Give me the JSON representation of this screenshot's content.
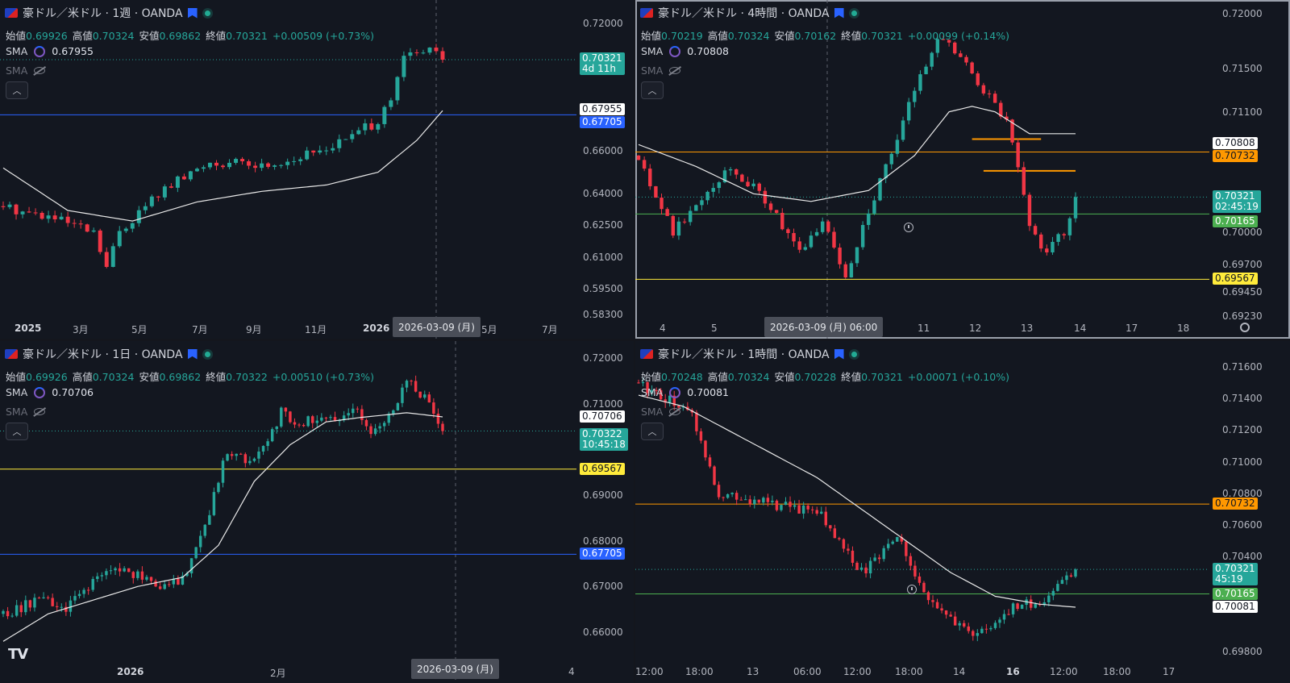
{
  "colors": {
    "up": "#26a69a",
    "down": "#f23645",
    "bg": "#131720",
    "sma": "#e8e8e8",
    "blue": "#2962ff",
    "orange": "#ff9800",
    "yellow": "#ffeb3b",
    "green": "#4caf50"
  },
  "panes": [
    {
      "id": "tl",
      "active": false,
      "title": "豪ドル／米ドル · 1週 · OANDA",
      "ohlc": {
        "open_label": "始値",
        "open": "0.69926",
        "high_label": "高値",
        "high": "0.70324",
        "low_label": "安値",
        "low": "0.69862",
        "close_label": "終値",
        "close": "0.70321",
        "change": "+0.00509 (+0.73%)"
      },
      "sma1": {
        "label": "SMA",
        "value": "0.67955"
      },
      "sma2": {
        "label": "SMA"
      },
      "y_ticks": [
        "0.72000",
        "0.66000",
        "0.64000",
        "0.62500",
        "0.61000",
        "0.59500",
        "0.58300"
      ],
      "x_ticks": [
        {
          "t": "2025",
          "bold": true
        },
        {
          "t": "3月"
        },
        {
          "t": "5月"
        },
        {
          "t": "7月"
        },
        {
          "t": "9月"
        },
        {
          "t": "11月"
        },
        {
          "t": "2026",
          "bold": true
        },
        {
          "t": "5月"
        },
        {
          "t": "7月"
        }
      ],
      "date_pill": "2026-03-09 (月)",
      "tags": [
        {
          "text": "0.70321",
          "sub": "4d 11h",
          "type": "price"
        },
        {
          "text": "0.67955",
          "type": "sma"
        },
        {
          "text": "0.67705",
          "type": "blue"
        }
      ]
    },
    {
      "id": "tr",
      "active": true,
      "title": "豪ドル／米ドル · 4時間 · OANDA",
      "ohlc": {
        "open_label": "始値",
        "open": "0.70219",
        "high_label": "高値",
        "high": "0.70324",
        "low_label": "安値",
        "low": "0.70162",
        "close_label": "終値",
        "close": "0.70321",
        "change": "+0.00099 (+0.14%)"
      },
      "sma1": {
        "label": "SMA",
        "value": "0.70808"
      },
      "sma2": {
        "label": "SMA"
      },
      "y_ticks": [
        "0.72000",
        "0.71500",
        "0.71100",
        "0.70000",
        "0.69700",
        "0.69450",
        "0.69230"
      ],
      "x_ticks": [
        {
          "t": "4"
        },
        {
          "t": "5"
        },
        {
          "t": "11"
        },
        {
          "t": "12"
        },
        {
          "t": "13"
        },
        {
          "t": "14"
        },
        {
          "t": "17"
        },
        {
          "t": "18"
        }
      ],
      "date_pill": "2026-03-09 (月)   06:00",
      "tags": [
        {
          "text": "0.70808",
          "type": "sma"
        },
        {
          "text": "0.70732",
          "type": "orange"
        },
        {
          "text": "0.70321",
          "sub": "02:45:19",
          "type": "price"
        },
        {
          "text": "0.70165",
          "type": "green"
        },
        {
          "text": "0.69567",
          "type": "yellow"
        }
      ]
    },
    {
      "id": "bl",
      "active": false,
      "title": "豪ドル／米ドル · 1日 · OANDA",
      "ohlc": {
        "open_label": "始値",
        "open": "0.69926",
        "high_label": "高値",
        "high": "0.70324",
        "low_label": "安値",
        "low": "0.69862",
        "close_label": "終値",
        "close": "0.70322",
        "change": "+0.00510 (+0.73%)"
      },
      "sma1": {
        "label": "SMA",
        "value": "0.70706"
      },
      "sma2": {
        "label": "SMA"
      },
      "y_ticks": [
        "0.72000",
        "0.71000",
        "0.69000",
        "0.68000",
        "0.67000",
        "0.66000"
      ],
      "x_ticks": [
        {
          "t": "2026",
          "bold": true
        },
        {
          "t": "2月"
        },
        {
          "t": "4"
        }
      ],
      "date_pill": "2026-03-09 (月)",
      "tags": [
        {
          "text": "0.70706",
          "type": "sma"
        },
        {
          "text": "0.70322",
          "sub": "10:45:18",
          "type": "price"
        },
        {
          "text": "0.69567",
          "type": "yellow"
        },
        {
          "text": "0.67705",
          "type": "blue"
        }
      ]
    },
    {
      "id": "br",
      "active": false,
      "title": "豪ドル／米ドル · 1時間 · OANDA",
      "ohlc": {
        "open_label": "始値",
        "open": "0.70248",
        "high_label": "高値",
        "high": "0.70324",
        "low_label": "安値",
        "low": "0.70228",
        "close_label": "終値",
        "close": "0.70321",
        "change": "+0.00071 (+0.10%)"
      },
      "sma1": {
        "label": "SMA",
        "value": "0.70081"
      },
      "sma2": {
        "label": "SMA"
      },
      "y_ticks": [
        "0.71600",
        "0.71400",
        "0.71200",
        "0.71000",
        "0.70800",
        "0.70600",
        "0.70400",
        "0.69800"
      ],
      "x_ticks": [
        {
          "t": "12:00"
        },
        {
          "t": "18:00"
        },
        {
          "t": "13"
        },
        {
          "t": "06:00"
        },
        {
          "t": "12:00"
        },
        {
          "t": "18:00"
        },
        {
          "t": "14"
        },
        {
          "t": "16",
          "bold": true
        },
        {
          "t": "12:00"
        },
        {
          "t": "18:00"
        },
        {
          "t": "17"
        }
      ],
      "tags": [
        {
          "text": "0.70732",
          "type": "orange"
        },
        {
          "text": "0.70321",
          "sub": "45:19",
          "type": "price"
        },
        {
          "text": "0.70165",
          "type": "green"
        },
        {
          "text": "0.70081",
          "type": "sma"
        }
      ]
    }
  ],
  "chart_data": [
    {
      "type": "candlestick",
      "title": "豪ドル／米ドル · 1週 · OANDA",
      "ylim": [
        0.583,
        0.722
      ],
      "x_ticks": [
        "2025",
        "3月",
        "5月",
        "7月",
        "9月",
        "11月",
        "2026",
        "5月",
        "7月"
      ],
      "levels": [
        {
          "value": 0.67705,
          "color": "blue"
        }
      ],
      "trend": [
        [
          0,
          0.634
        ],
        [
          8,
          0.628
        ],
        [
          14,
          0.621
        ],
        [
          16,
          0.605
        ],
        [
          18,
          0.622
        ],
        [
          24,
          0.64
        ],
        [
          32,
          0.655
        ],
        [
          40,
          0.653
        ],
        [
          46,
          0.657
        ],
        [
          52,
          0.664
        ],
        [
          58,
          0.674
        ],
        [
          60,
          0.683
        ],
        [
          62,
          0.704
        ],
        [
          66,
          0.708
        ],
        [
          68,
          0.703
        ]
      ],
      "sma": [
        [
          0,
          0.652
        ],
        [
          10,
          0.632
        ],
        [
          20,
          0.627
        ],
        [
          30,
          0.636
        ],
        [
          40,
          0.641
        ],
        [
          50,
          0.644
        ],
        [
          58,
          0.65
        ],
        [
          64,
          0.665
        ],
        [
          68,
          0.679
        ]
      ]
    },
    {
      "type": "candlestick",
      "title": "豪ドル／米ドル · 4時間 · OANDA",
      "ylim": [
        0.6923,
        0.7205
      ],
      "x_ticks": [
        "4",
        "5",
        "11",
        "12",
        "13",
        "14",
        "17",
        "18"
      ],
      "levels": [
        {
          "value": 0.70732,
          "color": "orange"
        },
        {
          "value": 0.70165,
          "color": "green"
        },
        {
          "value": 0.69567,
          "color": "yellow"
        }
      ],
      "segments": [
        {
          "x0": 58,
          "x1": 70,
          "value": 0.7085,
          "color": "orange"
        },
        {
          "x0": 60,
          "x1": 76,
          "value": 0.7056,
          "color": "orange"
        }
      ],
      "trend": [
        [
          0,
          0.707
        ],
        [
          6,
          0.7
        ],
        [
          12,
          0.704
        ],
        [
          16,
          0.706
        ],
        [
          22,
          0.703
        ],
        [
          28,
          0.698
        ],
        [
          32,
          0.701
        ],
        [
          36,
          0.696
        ],
        [
          40,
          0.702
        ],
        [
          44,
          0.707
        ],
        [
          48,
          0.713
        ],
        [
          52,
          0.718
        ],
        [
          56,
          0.716
        ],
        [
          60,
          0.713
        ],
        [
          64,
          0.71
        ],
        [
          66,
          0.706
        ],
        [
          68,
          0.701
        ],
        [
          70,
          0.698
        ],
        [
          72,
          0.699
        ],
        [
          74,
          0.7
        ],
        [
          76,
          0.7032
        ]
      ],
      "sma": [
        [
          0,
          0.708
        ],
        [
          10,
          0.706
        ],
        [
          20,
          0.7035
        ],
        [
          30,
          0.7028
        ],
        [
          40,
          0.7038
        ],
        [
          48,
          0.707
        ],
        [
          54,
          0.711
        ],
        [
          58,
          0.7115
        ],
        [
          62,
          0.711
        ],
        [
          68,
          0.709
        ]
      ]
    },
    {
      "type": "candlestick",
      "title": "豪ドル／米ドル · 1日 · OANDA",
      "ylim": [
        0.654,
        0.7205
      ],
      "x_ticks": [
        "2026",
        "2月",
        "4"
      ],
      "levels": [
        {
          "value": 0.69567,
          "color": "yellow"
        },
        {
          "value": 0.67705,
          "color": "blue"
        }
      ],
      "trend": [
        [
          0,
          0.664
        ],
        [
          8,
          0.667
        ],
        [
          14,
          0.665
        ],
        [
          20,
          0.671
        ],
        [
          26,
          0.674
        ],
        [
          32,
          0.672
        ],
        [
          36,
          0.67
        ],
        [
          40,
          0.672
        ],
        [
          44,
          0.68
        ],
        [
          48,
          0.693
        ],
        [
          50,
          0.7
        ],
        [
          54,
          0.698
        ],
        [
          58,
          0.7
        ],
        [
          62,
          0.708
        ],
        [
          66,
          0.706
        ],
        [
          70,
          0.707
        ],
        [
          74,
          0.706
        ],
        [
          78,
          0.71
        ],
        [
          82,
          0.704
        ],
        [
          86,
          0.707
        ],
        [
          90,
          0.715
        ],
        [
          94,
          0.711
        ],
        [
          98,
          0.704
        ]
      ],
      "sma": [
        [
          0,
          0.658
        ],
        [
          10,
          0.664
        ],
        [
          20,
          0.667
        ],
        [
          30,
          0.67
        ],
        [
          40,
          0.672
        ],
        [
          48,
          0.679
        ],
        [
          56,
          0.693
        ],
        [
          64,
          0.701
        ],
        [
          72,
          0.706
        ],
        [
          80,
          0.707
        ],
        [
          90,
          0.708
        ],
        [
          98,
          0.7071
        ]
      ]
    },
    {
      "type": "candlestick",
      "title": "豪ドル／米ドル · 1時間 · OANDA",
      "ylim": [
        0.6975,
        0.7167
      ],
      "x_ticks": [
        "12:00",
        "18:00",
        "13",
        "06:00",
        "12:00",
        "18:00",
        "14",
        "16",
        "12:00",
        "18:00",
        "17"
      ],
      "levels": [
        {
          "value": 0.70732,
          "color": "orange"
        },
        {
          "value": 0.70165,
          "color": "green"
        }
      ],
      "trend": [
        [
          0,
          0.715
        ],
        [
          6,
          0.714
        ],
        [
          12,
          0.713
        ],
        [
          18,
          0.708
        ],
        [
          24,
          0.7076
        ],
        [
          30,
          0.7073
        ],
        [
          36,
          0.707
        ],
        [
          40,
          0.707
        ],
        [
          46,
          0.7045
        ],
        [
          50,
          0.703
        ],
        [
          54,
          0.704
        ],
        [
          58,
          0.7055
        ],
        [
          62,
          0.703
        ],
        [
          66,
          0.7008
        ],
        [
          70,
          0.7003
        ],
        [
          74,
          0.699
        ],
        [
          78,
          0.6995
        ],
        [
          82,
          0.7005
        ],
        [
          86,
          0.701
        ],
        [
          90,
          0.701
        ],
        [
          94,
          0.702
        ],
        [
          98,
          0.7032
        ]
      ],
      "sma": [
        [
          0,
          0.7142
        ],
        [
          10,
          0.7135
        ],
        [
          20,
          0.712
        ],
        [
          30,
          0.7105
        ],
        [
          40,
          0.709
        ],
        [
          50,
          0.707
        ],
        [
          60,
          0.705
        ],
        [
          70,
          0.703
        ],
        [
          80,
          0.7015
        ],
        [
          90,
          0.701
        ],
        [
          98,
          0.70081
        ]
      ]
    }
  ]
}
